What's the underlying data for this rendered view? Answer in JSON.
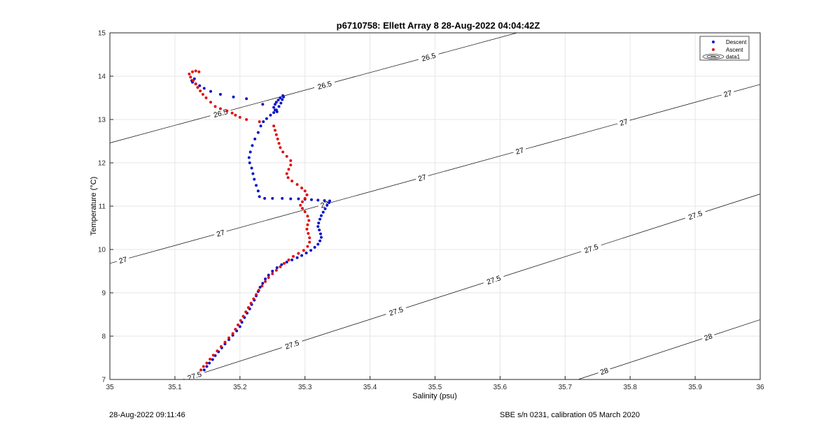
{
  "figure": {
    "footer_left": "28-Aug-2022 09:11:46",
    "footer_right": "SBE s/n 0231, calibration 05 March 2020"
  },
  "chart_data": {
    "type": "scatter",
    "title": "p6710758: Ellett Array 8 28-Aug-2022 04:04:42Z",
    "xlabel": "Salinity (psu)",
    "ylabel": "Temperature (°C)",
    "xlim": [
      35,
      36
    ],
    "ylim": [
      7,
      15
    ],
    "xticks": [
      "35",
      "35.1",
      "35.2",
      "35.3",
      "35.4",
      "35.5",
      "35.6",
      "35.7",
      "35.8",
      "35.9",
      "36"
    ],
    "yticks": [
      "7",
      "8",
      "9",
      "10",
      "11",
      "12",
      "13",
      "14",
      "15"
    ],
    "grid": true,
    "legend": {
      "position": "top-right",
      "entries": [
        "Descent",
        "Ascent",
        "data1"
      ]
    },
    "colors": {
      "descent": "#0a14c8",
      "ascent": "#e01010",
      "contour": "#000000",
      "grid": "#e6e6e6"
    },
    "series": [
      {
        "name": "Descent",
        "x": [
          35.145,
          35.149,
          35.153,
          35.158,
          35.162,
          35.167,
          35.172,
          35.177,
          35.183,
          35.189,
          35.195,
          35.2,
          35.203,
          35.207,
          35.211,
          35.215,
          35.218,
          35.222,
          35.225,
          35.228,
          35.231,
          35.235,
          35.239,
          35.244,
          35.25,
          35.257,
          35.264,
          35.272,
          35.28,
          35.288,
          35.295,
          35.302,
          35.309,
          35.315,
          35.32,
          35.323,
          35.325,
          35.324,
          35.322,
          35.32,
          35.321,
          35.323,
          35.325,
          35.328,
          35.331,
          35.334,
          35.337,
          35.338,
          35.33,
          35.32,
          35.31,
          35.3,
          35.29,
          35.278,
          35.265,
          35.25,
          35.238,
          35.23,
          35.228,
          35.225,
          35.222,
          35.22,
          35.218,
          35.215,
          35.214,
          35.216,
          35.219,
          35.223,
          35.228,
          35.232,
          35.236,
          35.241,
          35.247,
          35.252,
          35.256,
          35.26,
          35.263,
          35.265,
          35.267,
          35.266,
          35.262,
          35.259,
          35.256,
          35.254,
          35.252,
          35.254,
          35.257,
          35.235,
          35.21,
          35.19,
          35.17,
          35.155,
          35.145,
          35.138,
          35.132,
          35.127,
          35.126,
          35.13
        ],
        "y": [
          7.22,
          7.3,
          7.38,
          7.46,
          7.55,
          7.64,
          7.73,
          7.82,
          7.92,
          8.02,
          8.12,
          8.22,
          8.32,
          8.43,
          8.53,
          8.63,
          8.73,
          8.83,
          8.93,
          9.03,
          9.13,
          9.22,
          9.32,
          9.41,
          9.5,
          9.58,
          9.65,
          9.71,
          9.76,
          9.81,
          9.86,
          9.92,
          9.98,
          10.05,
          10.12,
          10.2,
          10.28,
          10.36,
          10.45,
          10.53,
          10.61,
          10.7,
          10.78,
          10.86,
          10.94,
          11.02,
          11.08,
          11.12,
          11.13,
          11.14,
          11.15,
          11.16,
          11.17,
          11.17,
          11.18,
          11.18,
          11.18,
          11.22,
          11.35,
          11.48,
          11.62,
          11.75,
          11.88,
          12.0,
          12.12,
          12.25,
          12.4,
          12.55,
          12.7,
          12.85,
          12.95,
          13.02,
          13.1,
          13.16,
          13.22,
          13.3,
          13.38,
          13.46,
          13.52,
          13.55,
          13.5,
          13.45,
          13.4,
          13.35,
          13.28,
          13.22,
          13.18,
          13.35,
          13.48,
          13.52,
          13.58,
          13.65,
          13.72,
          13.78,
          13.82,
          13.86,
          13.9,
          13.94
        ]
      },
      {
        "name": "Ascent",
        "x": [
          35.14,
          35.144,
          35.149,
          35.154,
          35.159,
          35.165,
          35.171,
          35.177,
          35.183,
          35.189,
          35.193,
          35.197,
          35.201,
          35.205,
          35.209,
          35.213,
          35.217,
          35.221,
          35.225,
          35.229,
          35.234,
          35.239,
          35.244,
          35.25,
          35.256,
          35.262,
          35.268,
          35.275,
          35.282,
          35.29,
          35.298,
          35.304,
          35.307,
          35.307,
          35.305,
          35.303,
          35.304,
          35.306,
          35.304,
          35.3,
          35.296,
          35.293,
          35.296,
          35.3,
          35.303,
          35.3,
          35.295,
          35.288,
          35.28,
          35.274,
          35.272,
          35.275,
          35.278,
          35.278,
          35.272,
          35.266,
          35.262,
          35.26,
          35.258,
          35.256,
          35.254,
          35.252,
          35.23,
          35.21,
          35.2,
          35.193,
          35.188,
          35.18,
          35.17,
          35.162,
          35.155,
          35.148,
          35.143,
          35.139,
          35.135,
          35.132,
          35.128,
          35.124,
          35.122,
          35.127,
          35.132,
          35.137
        ],
        "y": [
          7.22,
          7.3,
          7.38,
          7.47,
          7.56,
          7.66,
          7.76,
          7.86,
          7.96,
          8.06,
          8.16,
          8.26,
          8.36,
          8.46,
          8.56,
          8.66,
          8.76,
          8.86,
          8.96,
          9.06,
          9.16,
          9.26,
          9.35,
          9.44,
          9.52,
          9.6,
          9.68,
          9.76,
          9.84,
          9.91,
          9.98,
          10.07,
          10.17,
          10.27,
          10.37,
          10.47,
          10.57,
          10.67,
          10.77,
          10.87,
          10.95,
          11.02,
          11.1,
          11.18,
          11.26,
          11.35,
          11.42,
          11.5,
          11.58,
          11.66,
          11.75,
          11.85,
          11.95,
          12.05,
          12.15,
          12.25,
          12.35,
          12.45,
          12.55,
          12.65,
          12.75,
          12.85,
          12.95,
          13.0,
          13.05,
          13.1,
          13.15,
          13.2,
          13.25,
          13.3,
          13.4,
          13.5,
          13.58,
          13.66,
          13.74,
          13.82,
          13.9,
          13.98,
          14.05,
          14.1,
          14.12,
          14.1
        ]
      }
    ],
    "contours": [
      {
        "level": 26.5,
        "label": "26.5"
      },
      {
        "level": 27,
        "label": "27"
      },
      {
        "level": 27.5,
        "label": "27.5"
      },
      {
        "level": 28,
        "label": "28"
      }
    ]
  }
}
